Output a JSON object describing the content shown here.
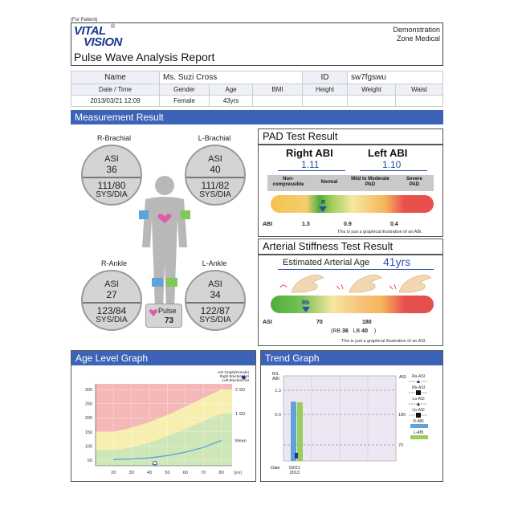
{
  "header": {
    "for_patient": "(For Patient)",
    "logo_top": "VITAL",
    "logo_bottom": "VISION",
    "logo_reg": "®",
    "title": "Pulse Wave Analysis Report",
    "clinic_line1": "Demonstration",
    "clinic_line2": "Zone Medical"
  },
  "patient": {
    "name_label": "Name",
    "name": "Ms. Suzi Cross",
    "id_label": "ID",
    "id": "sw7fgswu",
    "headers": [
      "Date / Time",
      "Gender",
      "Age",
      "BMI",
      "Height",
      "Weight",
      "Waist"
    ],
    "values": [
      "2013/03/21 12:09",
      "Female",
      "43yrs",
      "",
      "",
      "",
      ""
    ]
  },
  "measurement": {
    "section_title": "Measurement Result",
    "r_brachial": {
      "label": "R-Brachial",
      "asi_label": "ASI",
      "asi": "36",
      "bp": "111/80",
      "unit": "SYS/DIA"
    },
    "l_brachial": {
      "label": "L-Brachial",
      "asi_label": "ASI",
      "asi": "40",
      "bp": "111/82",
      "unit": "SYS/DIA"
    },
    "r_ankle": {
      "label": "R-Ankle",
      "asi_label": "ASI",
      "asi": "27",
      "bp": "123/84",
      "unit": "SYS/DIA"
    },
    "l_ankle": {
      "label": "L-Ankle",
      "asi_label": "ASI",
      "asi": "34",
      "bp": "122/87",
      "unit": "SYS/DIA"
    },
    "pulse_label": "Pulse",
    "pulse": "73"
  },
  "pad": {
    "title": "PAD Test Result",
    "right_label": "Right ABI",
    "right_value": "1.11",
    "left_label": "Left ABI",
    "left_value": "1.10",
    "categories": [
      "Non-\ncompressible",
      "Normal",
      "Mild to Moderate\nPAD",
      "Severe\nPAD"
    ],
    "marker_label": "R",
    "axis_label": "ABI",
    "ticks": [
      "1.3",
      "0.9",
      "0.4"
    ],
    "note": "This is just a graphical illustration of an ABI."
  },
  "stiffness": {
    "title": "Arterial Stiffness Test Result",
    "age_label": "Estimated Arterial Age",
    "age_value": "41yrs",
    "marker_label": "Rb",
    "axis_label": "ASI",
    "ticks": [
      "70",
      "180"
    ],
    "rb_label": "(RB",
    "rb_value": "36",
    "lb_label": "LB",
    "lb_value": "40",
    "close": ")",
    "note": "This is just a graphical illustration of an ASI."
  },
  "age_graph": {
    "title": "Age Level Graph",
    "legend": [
      "ASI Graph(Female)",
      "Right Brachial ASI",
      "Left Brachial ASI"
    ],
    "band_labels": [
      "2 SD",
      "1 SD",
      "Mean"
    ],
    "x_unit": "(yrs)"
  },
  "trend_graph": {
    "title": "Trend Graph",
    "left_axis_label": "R/L\nABI",
    "right_axis_label": "ASI",
    "date_label": "Date",
    "date_value": "03/21\n2013",
    "legend": [
      "Ra-ASI",
      "Rb-ASI",
      "La-ASI",
      "Lb-ASI",
      "R-ABI",
      "L-ABI"
    ]
  },
  "chart_data": [
    {
      "type": "line",
      "title": "Age Level Graph",
      "xlabel": "(yrs)",
      "ylabel": "",
      "x": [
        20,
        30,
        40,
        50,
        60,
        70,
        80
      ],
      "xlim": [
        10,
        86
      ],
      "ylim": [
        30,
        320
      ],
      "yticks": [
        50,
        100,
        150,
        200,
        250,
        300
      ],
      "series": [
        {
          "name": "2 SD",
          "values": [
            150,
            165,
            185,
            210,
            240,
            270,
            300
          ]
        },
        {
          "name": "1 SD",
          "values": [
            85,
            95,
            112,
            135,
            160,
            188,
            215
          ]
        },
        {
          "name": "Mean",
          "values": [
            52,
            54,
            58,
            66,
            78,
            95,
            120
          ]
        }
      ],
      "points": [
        {
          "name": "Right Brachial ASI",
          "x": 43,
          "y": 36
        },
        {
          "name": "Left Brachial ASI",
          "x": 43,
          "y": 40
        }
      ],
      "grid": true
    },
    {
      "type": "bar",
      "title": "Trend Graph",
      "categories": [
        "03/21 2013"
      ],
      "left_axis": {
        "label": "R/L ABI",
        "ticks": [
          1.3,
          0.9
        ]
      },
      "right_axis": {
        "label": "ASI",
        "ticks": [
          180,
          70
        ]
      },
      "series": [
        {
          "name": "R-ABI",
          "values": [
            1.11
          ]
        },
        {
          "name": "L-ABI",
          "values": [
            1.1
          ]
        }
      ],
      "asi_points": [
        {
          "name": "Ra-ASI",
          "value": 27
        },
        {
          "name": "Rb-ASI",
          "value": 36
        },
        {
          "name": "La-ASI",
          "value": 34
        },
        {
          "name": "Lb-ASI",
          "value": 40
        }
      ],
      "legend_position": "right"
    }
  ]
}
